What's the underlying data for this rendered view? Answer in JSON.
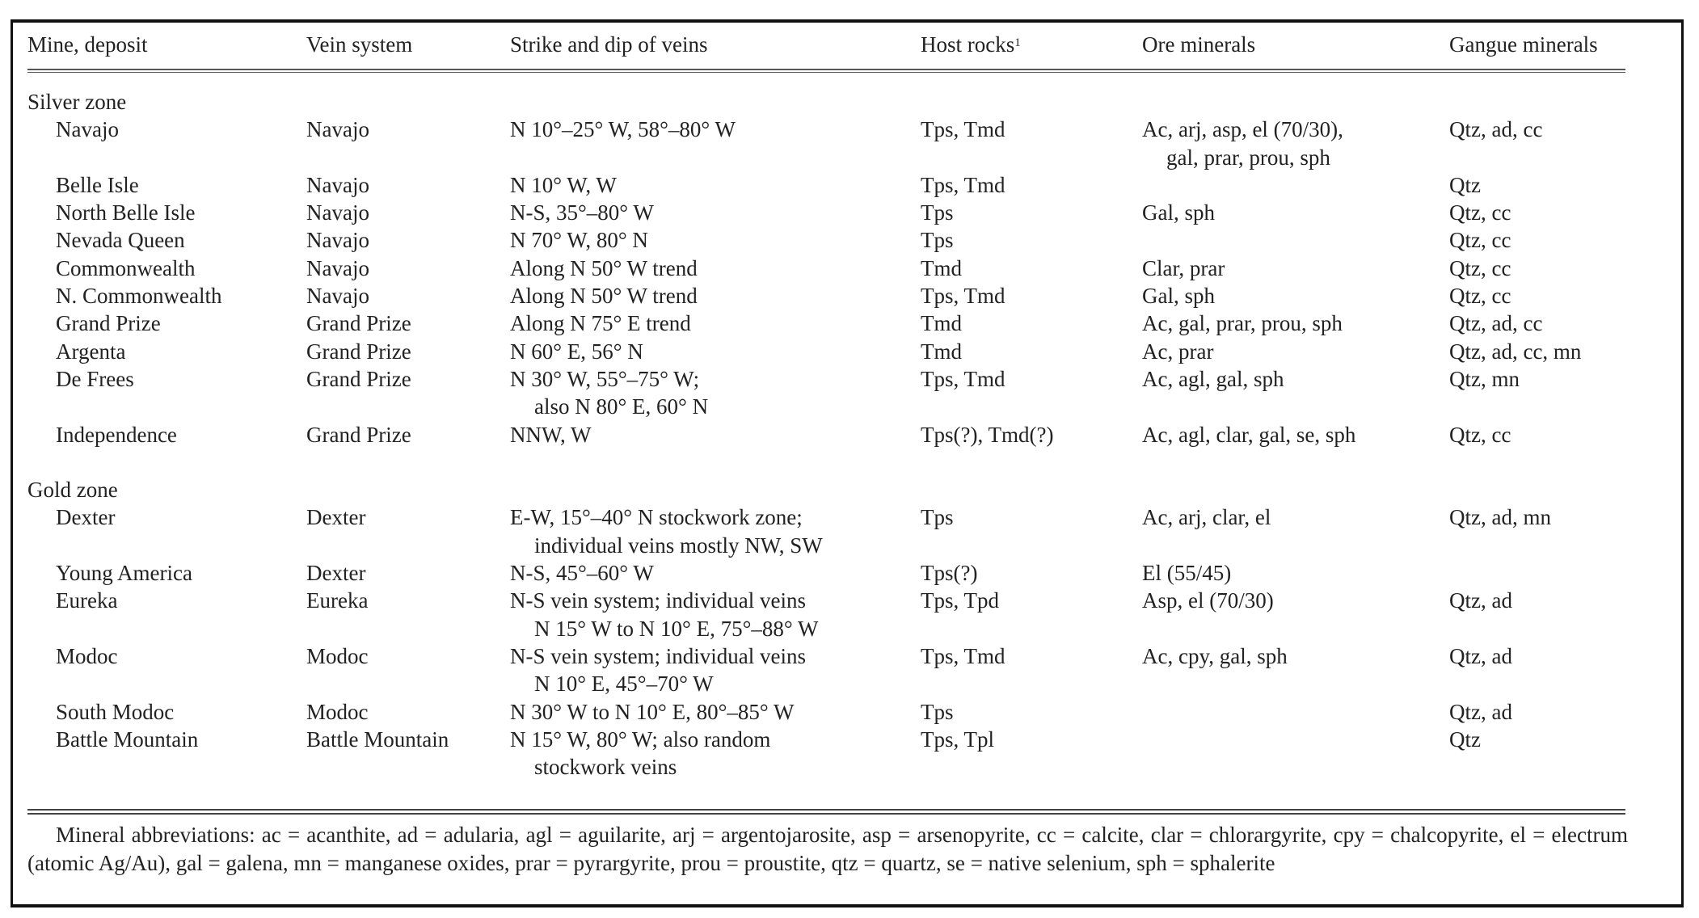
{
  "headers": [
    "Mine, deposit",
    "Vein system",
    "Strike and dip of veins",
    "Host rocks",
    "Ore minerals",
    "Gangue minerals"
  ],
  "host_rocks_footnote_marker": "1",
  "zones": [
    {
      "name": "Silver zone",
      "rows": [
        {
          "mine": "Navajo",
          "vein": "Navajo",
          "strike": [
            "N 10°–25° W, 58°–80° W"
          ],
          "host": "Tps, Tmd",
          "ore": [
            "Ac, arj, asp, el (70/30),",
            "gal, prar, prou, sph"
          ],
          "gangue": "Qtz, ad, cc"
        },
        {
          "mine": "Belle Isle",
          "vein": "Navajo",
          "strike": [
            "N 10° W, W"
          ],
          "host": "Tps, Tmd",
          "ore": [
            ""
          ],
          "gangue": "Qtz"
        },
        {
          "mine": "North Belle Isle",
          "vein": "Navajo",
          "strike": [
            "N-S, 35°–80° W"
          ],
          "host": "Tps",
          "ore": [
            "Gal, sph"
          ],
          "gangue": "Qtz, cc"
        },
        {
          "mine": "Nevada Queen",
          "vein": "Navajo",
          "strike": [
            "N 70° W, 80° N"
          ],
          "host": "Tps",
          "ore": [
            ""
          ],
          "gangue": "Qtz, cc"
        },
        {
          "mine": "Commonwealth",
          "vein": "Navajo",
          "strike": [
            "Along N 50° W trend"
          ],
          "host": "Tmd",
          "ore": [
            "Clar, prar"
          ],
          "gangue": "Qtz, cc"
        },
        {
          "mine": "N. Commonwealth",
          "vein": "Navajo",
          "strike": [
            "Along N 50° W trend"
          ],
          "host": "Tps, Tmd",
          "ore": [
            "Gal, sph"
          ],
          "gangue": "Qtz, cc"
        },
        {
          "mine": "Grand Prize",
          "vein": "Grand Prize",
          "strike": [
            "Along N 75° E trend"
          ],
          "host": "Tmd",
          "ore": [
            "Ac, gal, prar, prou, sph"
          ],
          "gangue": "Qtz, ad, cc"
        },
        {
          "mine": "Argenta",
          "vein": "Grand Prize",
          "strike": [
            "N 60° E, 56° N"
          ],
          "host": "Tmd",
          "ore": [
            "Ac, prar"
          ],
          "gangue": "Qtz, ad, cc, mn"
        },
        {
          "mine": "De Frees",
          "vein": "Grand Prize",
          "strike": [
            "N 30° W, 55°–75° W;",
            "also N 80° E, 60° N"
          ],
          "host": "Tps, Tmd",
          "ore": [
            "Ac, agl, gal, sph"
          ],
          "gangue": "Qtz, mn"
        },
        {
          "mine": "Independence",
          "vein": "Grand Prize",
          "strike": [
            "NNW, W"
          ],
          "host": "Tps(?), Tmd(?)",
          "ore": [
            "Ac, agl, clar, gal, se, sph"
          ],
          "gangue": "Qtz, cc"
        }
      ]
    },
    {
      "name": "Gold zone",
      "rows": [
        {
          "mine": "Dexter",
          "vein": "Dexter",
          "strike": [
            "E-W, 15°–40° N stockwork zone;",
            "individual veins mostly NW, SW"
          ],
          "host": "Tps",
          "ore": [
            "Ac, arj, clar, el"
          ],
          "gangue": "Qtz, ad, mn"
        },
        {
          "mine": "Young America",
          "vein": "Dexter",
          "strike": [
            "N-S, 45°–60° W"
          ],
          "host": "Tps(?)",
          "ore": [
            "El (55/45)"
          ],
          "gangue": ""
        },
        {
          "mine": "Eureka",
          "vein": "Eureka",
          "strike": [
            "N-S vein system; individual veins",
            "N 15° W to N 10° E, 75°–88° W"
          ],
          "host": "Tps, Tpd",
          "ore": [
            "Asp, el (70/30)"
          ],
          "gangue": "Qtz, ad"
        },
        {
          "mine": "Modoc",
          "vein": "Modoc",
          "strike": [
            "N-S vein system; individual veins",
            "N 10° E, 45°–70° W"
          ],
          "host": "Tps, Tmd",
          "ore": [
            "Ac, cpy, gal, sph"
          ],
          "gangue": "Qtz, ad"
        },
        {
          "mine": "South Modoc",
          "vein": "Modoc",
          "strike": [
            "N 30° W to N 10° E, 80°–85° W"
          ],
          "host": "Tps",
          "ore": [
            ""
          ],
          "gangue": "Qtz, ad"
        },
        {
          "mine": "Battle Mountain",
          "vein": "Battle Mountain",
          "strike": [
            "N 15° W, 80° W; also random",
            "stockwork veins"
          ],
          "host": "Tps, Tpl",
          "ore": [
            ""
          ],
          "gangue": "Qtz"
        }
      ]
    }
  ],
  "footnote": "Mineral abbreviations: ac = acanthite, ad = adularia, agl = aguilarite, arj = argentojarosite, asp = arsenopyrite, cc = calcite, clar = chlorargyrite, cpy = chalcopyrite, el = electrum (atomic Ag/Au), gal = galena, mn = manganese oxides, prar = pyrargyrite, prou = proustite, qtz = quartz, se = native selenium, sph = sphalerite"
}
